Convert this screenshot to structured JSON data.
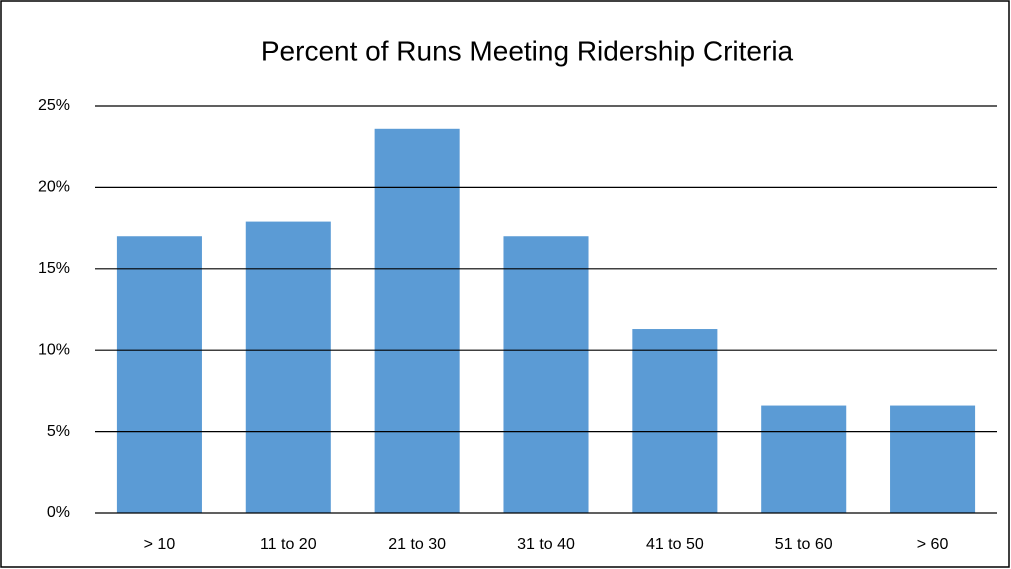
{
  "chart_data": {
    "type": "bar",
    "title": "Percent of Runs Meeting Ridership Criteria",
    "categories": [
      "> 10",
      "11 to 20",
      "21 to 30",
      "31 to 40",
      "41 to 50",
      "51 to 60",
      "> 60"
    ],
    "values": [
      17,
      17.9,
      23.6,
      17,
      11.3,
      6.6,
      6.6
    ],
    "color": "#5b9bd5",
    "ylim": [
      0,
      25
    ],
    "yticks": [
      {
        "value": 0,
        "label": "0%"
      },
      {
        "value": 5,
        "label": "5%"
      },
      {
        "value": 10,
        "label": "10%"
      },
      {
        "value": 15,
        "label": "15%"
      },
      {
        "value": 20,
        "label": "20%"
      },
      {
        "value": 25,
        "label": "25%"
      }
    ],
    "grid": true
  }
}
